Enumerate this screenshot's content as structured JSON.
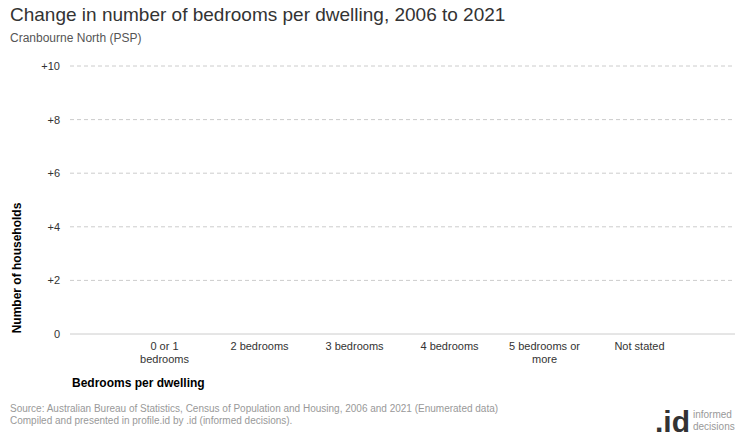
{
  "chart_data": {
    "type": "bar",
    "title": "Change in number of bedrooms per dwelling, 2006 to 2021",
    "subtitle": "Cranbourne North (PSP)",
    "x_label": "Bedrooms per dwelling",
    "y_label": "Number of households",
    "categories": [
      "0 or 1 bedrooms",
      "2 bedrooms",
      "3 bedrooms",
      "4 bedrooms",
      "5 bedrooms or more",
      "Not stated"
    ],
    "values": [
      0,
      0,
      0,
      0,
      0,
      0
    ],
    "color": "#2b6ca3",
    "ylim": [
      0,
      10
    ],
    "yticks": [
      0,
      {
        "value": 2,
        "label": "+2"
      },
      {
        "value": 4,
        "label": "+4"
      },
      {
        "value": 6,
        "label": "+6"
      },
      {
        "value": 8,
        "label": "+8"
      },
      {
        "value": 10,
        "label": "+10"
      }
    ],
    "grid": true,
    "source": [
      "Source: Australian Bureau of Statistics, Census of Population and Housing, 2006 and 2021 (Enumerated data)",
      "Compiled and presented in profile.id by .id (informed decisions)."
    ],
    "logo": ".id",
    "logo_tagline": [
      "informed",
      "decisions"
    ]
  }
}
